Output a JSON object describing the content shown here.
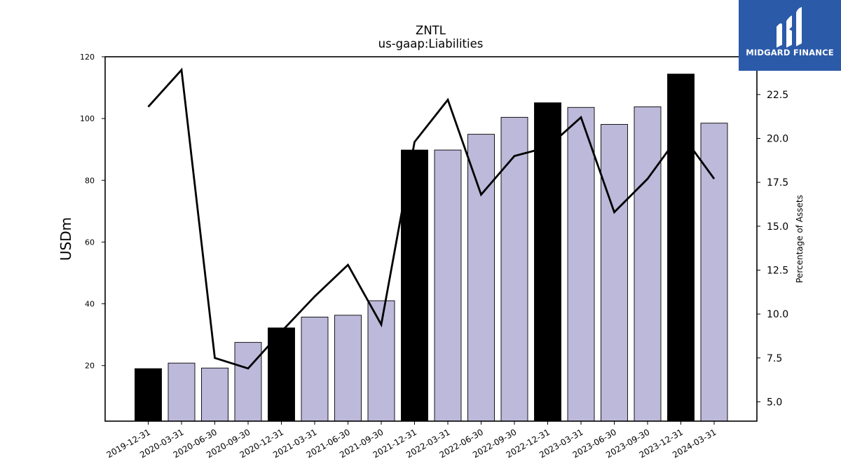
{
  "logo": {
    "text": "MIDGARD FINANCE",
    "color": "#2b5aa9"
  },
  "chart_data": {
    "type": "bar",
    "title": "ZNTL",
    "subtitle": "us-gaap:Liabilities",
    "ylabel": "USDm",
    "y2label": "Percentage of Assets",
    "ylim": [
      2,
      120
    ],
    "y2lim": [
      3.9,
      24.65
    ],
    "yticks": [
      20,
      40,
      60,
      80,
      100,
      120
    ],
    "y2ticks": [
      5.0,
      7.5,
      10.0,
      12.5,
      15.0,
      17.5,
      20.0,
      22.5
    ],
    "categories": [
      "2019-12-31",
      "2020-03-31",
      "2020-06-30",
      "2020-09-30",
      "2020-12-31",
      "2021-03-31",
      "2021-06-30",
      "2021-09-30",
      "2021-12-31",
      "2022-03-31",
      "2022-06-30",
      "2022-09-30",
      "2022-12-31",
      "2023-03-31",
      "2023-06-30",
      "2023-09-30",
      "2023-12-31",
      "2024-03-31"
    ],
    "series": [
      {
        "type": "bar",
        "values": [
          19.0,
          20.8,
          19.2,
          27.5,
          32.2,
          35.7,
          36.3,
          41.0,
          89.8,
          89.8,
          94.9,
          100.4,
          105.1,
          103.6,
          98.1,
          103.8,
          114.4,
          98.5
        ],
        "year_end": [
          true,
          false,
          false,
          false,
          true,
          false,
          false,
          false,
          true,
          false,
          false,
          false,
          true,
          false,
          false,
          false,
          true,
          false
        ]
      },
      {
        "type": "line",
        "axis": "right",
        "values": [
          21.8,
          23.9,
          7.5,
          6.9,
          9.0,
          11.0,
          12.8,
          9.4,
          19.8,
          22.2,
          16.8,
          19.0,
          19.5,
          21.2,
          15.8,
          17.7,
          20.3,
          17.7
        ]
      }
    ],
    "colors": {
      "bar": "#bcb9da",
      "bar_year_end": "#000000",
      "line": "#000000"
    },
    "grid": false
  }
}
